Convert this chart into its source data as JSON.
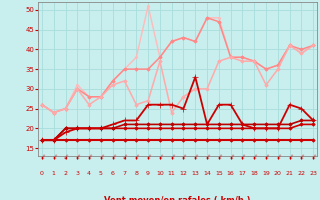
{
  "x": [
    0,
    1,
    2,
    3,
    4,
    5,
    6,
    7,
    8,
    9,
    10,
    11,
    12,
    13,
    14,
    15,
    16,
    17,
    18,
    19,
    20,
    21,
    22,
    23
  ],
  "series": [
    {
      "y": [
        17,
        17,
        17,
        17,
        17,
        17,
        17,
        17,
        17,
        17,
        17,
        17,
        17,
        17,
        17,
        17,
        17,
        17,
        17,
        17,
        17,
        17,
        17,
        17
      ],
      "color": "#cc0000",
      "lw": 1.5,
      "marker": "D",
      "ms": 1.8,
      "zorder": 5
    },
    {
      "y": [
        17,
        17,
        20,
        20,
        20,
        20,
        20,
        20,
        20,
        20,
        20,
        20,
        20,
        20,
        20,
        20,
        20,
        20,
        20,
        20,
        20,
        20,
        21,
        21
      ],
      "color": "#cc0000",
      "lw": 1.2,
      "marker": "D",
      "ms": 1.8,
      "zorder": 5
    },
    {
      "y": [
        17,
        17,
        20,
        20,
        20,
        20,
        20,
        21,
        21,
        21,
        21,
        21,
        21,
        21,
        21,
        21,
        21,
        21,
        21,
        21,
        21,
        21,
        22,
        22
      ],
      "color": "#bb0000",
      "lw": 1.2,
      "marker": "D",
      "ms": 1.8,
      "zorder": 5
    },
    {
      "y": [
        17,
        17,
        19,
        20,
        20,
        20,
        21,
        22,
        22,
        26,
        26,
        26,
        25,
        33,
        21,
        26,
        26,
        21,
        20,
        20,
        20,
        26,
        25,
        22
      ],
      "color": "#cc0000",
      "lw": 1.3,
      "marker": "+",
      "ms": 4.5,
      "zorder": 6
    },
    {
      "y": [
        26,
        24,
        25,
        30,
        26,
        28,
        31,
        32,
        26,
        27,
        37,
        24,
        28,
        30,
        30,
        37,
        38,
        37,
        37,
        31,
        35,
        41,
        39,
        41
      ],
      "color": "#ffaaaa",
      "lw": 1.1,
      "marker": "D",
      "ms": 1.8,
      "zorder": 4
    },
    {
      "y": [
        26,
        24,
        25,
        30,
        28,
        28,
        32,
        35,
        35,
        35,
        38,
        42,
        43,
        42,
        48,
        47,
        38,
        38,
        37,
        35,
        36,
        41,
        40,
        41
      ],
      "color": "#ff8888",
      "lw": 1.1,
      "marker": "D",
      "ms": 1.8,
      "zorder": 3
    },
    {
      "y": [
        26,
        24,
        25,
        31,
        28,
        28,
        32,
        35,
        38,
        51,
        38,
        42,
        43,
        42,
        48,
        48,
        38,
        38,
        37,
        35,
        36,
        41,
        39,
        41
      ],
      "color": "#ffbbbb",
      "lw": 1.0,
      "marker": "D",
      "ms": 1.5,
      "zorder": 2
    }
  ],
  "xlim": [
    -0.3,
    23.3
  ],
  "ylim": [
    13,
    52
  ],
  "yticks": [
    15,
    20,
    25,
    30,
    35,
    40,
    45,
    50
  ],
  "xticks": [
    0,
    1,
    2,
    3,
    4,
    5,
    6,
    7,
    8,
    9,
    10,
    11,
    12,
    13,
    14,
    15,
    16,
    17,
    18,
    19,
    20,
    21,
    22,
    23
  ],
  "bg_color": "#c8eeed",
  "grid_color": "#aadddd",
  "tick_color": "#cc0000",
  "spine_color": "#888888"
}
